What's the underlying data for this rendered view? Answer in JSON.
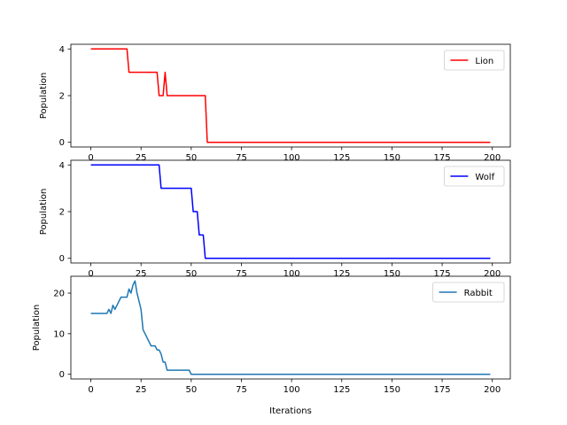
{
  "chart_data": [
    {
      "type": "line",
      "title": "",
      "xlabel": "",
      "ylabel": "Population",
      "xlim": [
        -9.95,
        208.95
      ],
      "ylim": [
        -0.2,
        4.2
      ],
      "xticks": [
        "0",
        "25",
        "50",
        "75",
        "100",
        "125",
        "150",
        "175",
        "200"
      ],
      "yticks": [
        "0",
        "2",
        "4"
      ],
      "legend": "top-right",
      "grid": false,
      "series": [
        {
          "name": "Lion",
          "color": "#ff0000",
          "x": [
            0,
            18,
            19,
            33,
            34,
            36,
            37,
            38,
            57,
            58,
            199
          ],
          "y": [
            4,
            4,
            3,
            3,
            2,
            2,
            3,
            2,
            2,
            0,
            0
          ]
        }
      ]
    },
    {
      "type": "line",
      "title": "",
      "xlabel": "",
      "ylabel": "Population",
      "xlim": [
        -9.95,
        208.95
      ],
      "ylim": [
        -0.2,
        4.2
      ],
      "xticks": [
        "0",
        "25",
        "50",
        "75",
        "100",
        "125",
        "150",
        "175",
        "200"
      ],
      "yticks": [
        "0",
        "2",
        "4"
      ],
      "legend": "top-right",
      "grid": false,
      "series": [
        {
          "name": "Wolf",
          "color": "#0000ff",
          "x": [
            0,
            34,
            35,
            50,
            51,
            53,
            54,
            56,
            57,
            199
          ],
          "y": [
            4,
            4,
            3,
            3,
            2,
            2,
            1,
            1,
            0,
            0
          ]
        }
      ]
    },
    {
      "type": "line",
      "title": "",
      "xlabel": "Iterations",
      "ylabel": "Population",
      "xlim": [
        -9.95,
        208.95
      ],
      "ylim": [
        -1.15,
        24.15
      ],
      "xticks": [
        "0",
        "25",
        "50",
        "75",
        "100",
        "125",
        "150",
        "175",
        "200"
      ],
      "yticks": [
        "0",
        "10",
        "20"
      ],
      "legend": "top-right",
      "grid": false,
      "series": [
        {
          "name": "Rabbit",
          "color": "#1f77b4",
          "x": [
            0,
            8,
            9,
            10,
            11,
            12,
            13,
            15,
            16,
            18,
            19,
            20,
            21,
            22,
            23,
            24,
            25,
            26,
            28,
            30,
            31,
            32,
            33,
            34,
            35,
            36,
            37,
            38,
            47,
            48,
            49,
            50,
            199
          ],
          "y": [
            15,
            15,
            16,
            15,
            17,
            16,
            17,
            19,
            19,
            19,
            21,
            20,
            22,
            23,
            20,
            18,
            16,
            11,
            9,
            7,
            7,
            7,
            6,
            6,
            5,
            3,
            3,
            1,
            1,
            1,
            1,
            0,
            0
          ]
        }
      ]
    }
  ]
}
